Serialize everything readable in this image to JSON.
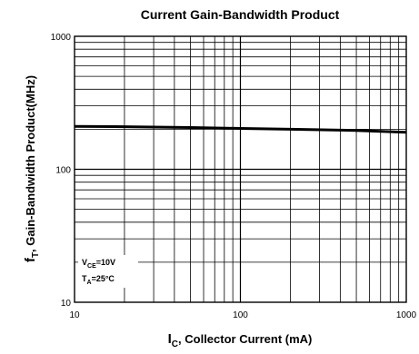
{
  "chart_data": {
    "type": "line",
    "title": "Current Gain-Bandwidth Product",
    "xlabel": {
      "main": "I",
      "sub": "C",
      "rest": ", Collector Current (mA)"
    },
    "ylabel": {
      "main": "f",
      "sub": "T",
      "rest": ", Gain-Bandwidth Product(MHz)"
    },
    "x_scale": "log",
    "y_scale": "log",
    "xlim": [
      10,
      1000
    ],
    "ylim": [
      10,
      1000
    ],
    "x_ticks": [
      {
        "value": 10,
        "label": "10"
      },
      {
        "value": 100,
        "label": "100"
      },
      {
        "value": 1000,
        "label": "1000"
      }
    ],
    "y_ticks": [
      {
        "value": 10,
        "label": "10"
      },
      {
        "value": 100,
        "label": "100"
      },
      {
        "value": 1000,
        "label": "1000"
      }
    ],
    "grid": true,
    "series": [
      {
        "x": [
          10,
          20,
          50,
          100,
          200,
          500,
          1000
        ],
        "y": [
          210,
          209,
          206,
          203,
          200,
          196,
          190
        ]
      }
    ],
    "conditions": [
      {
        "main": "V",
        "sub": "CE",
        "rest": "=10V"
      },
      {
        "main": "T",
        "sub": "A",
        "rest": "=25°C"
      }
    ]
  }
}
